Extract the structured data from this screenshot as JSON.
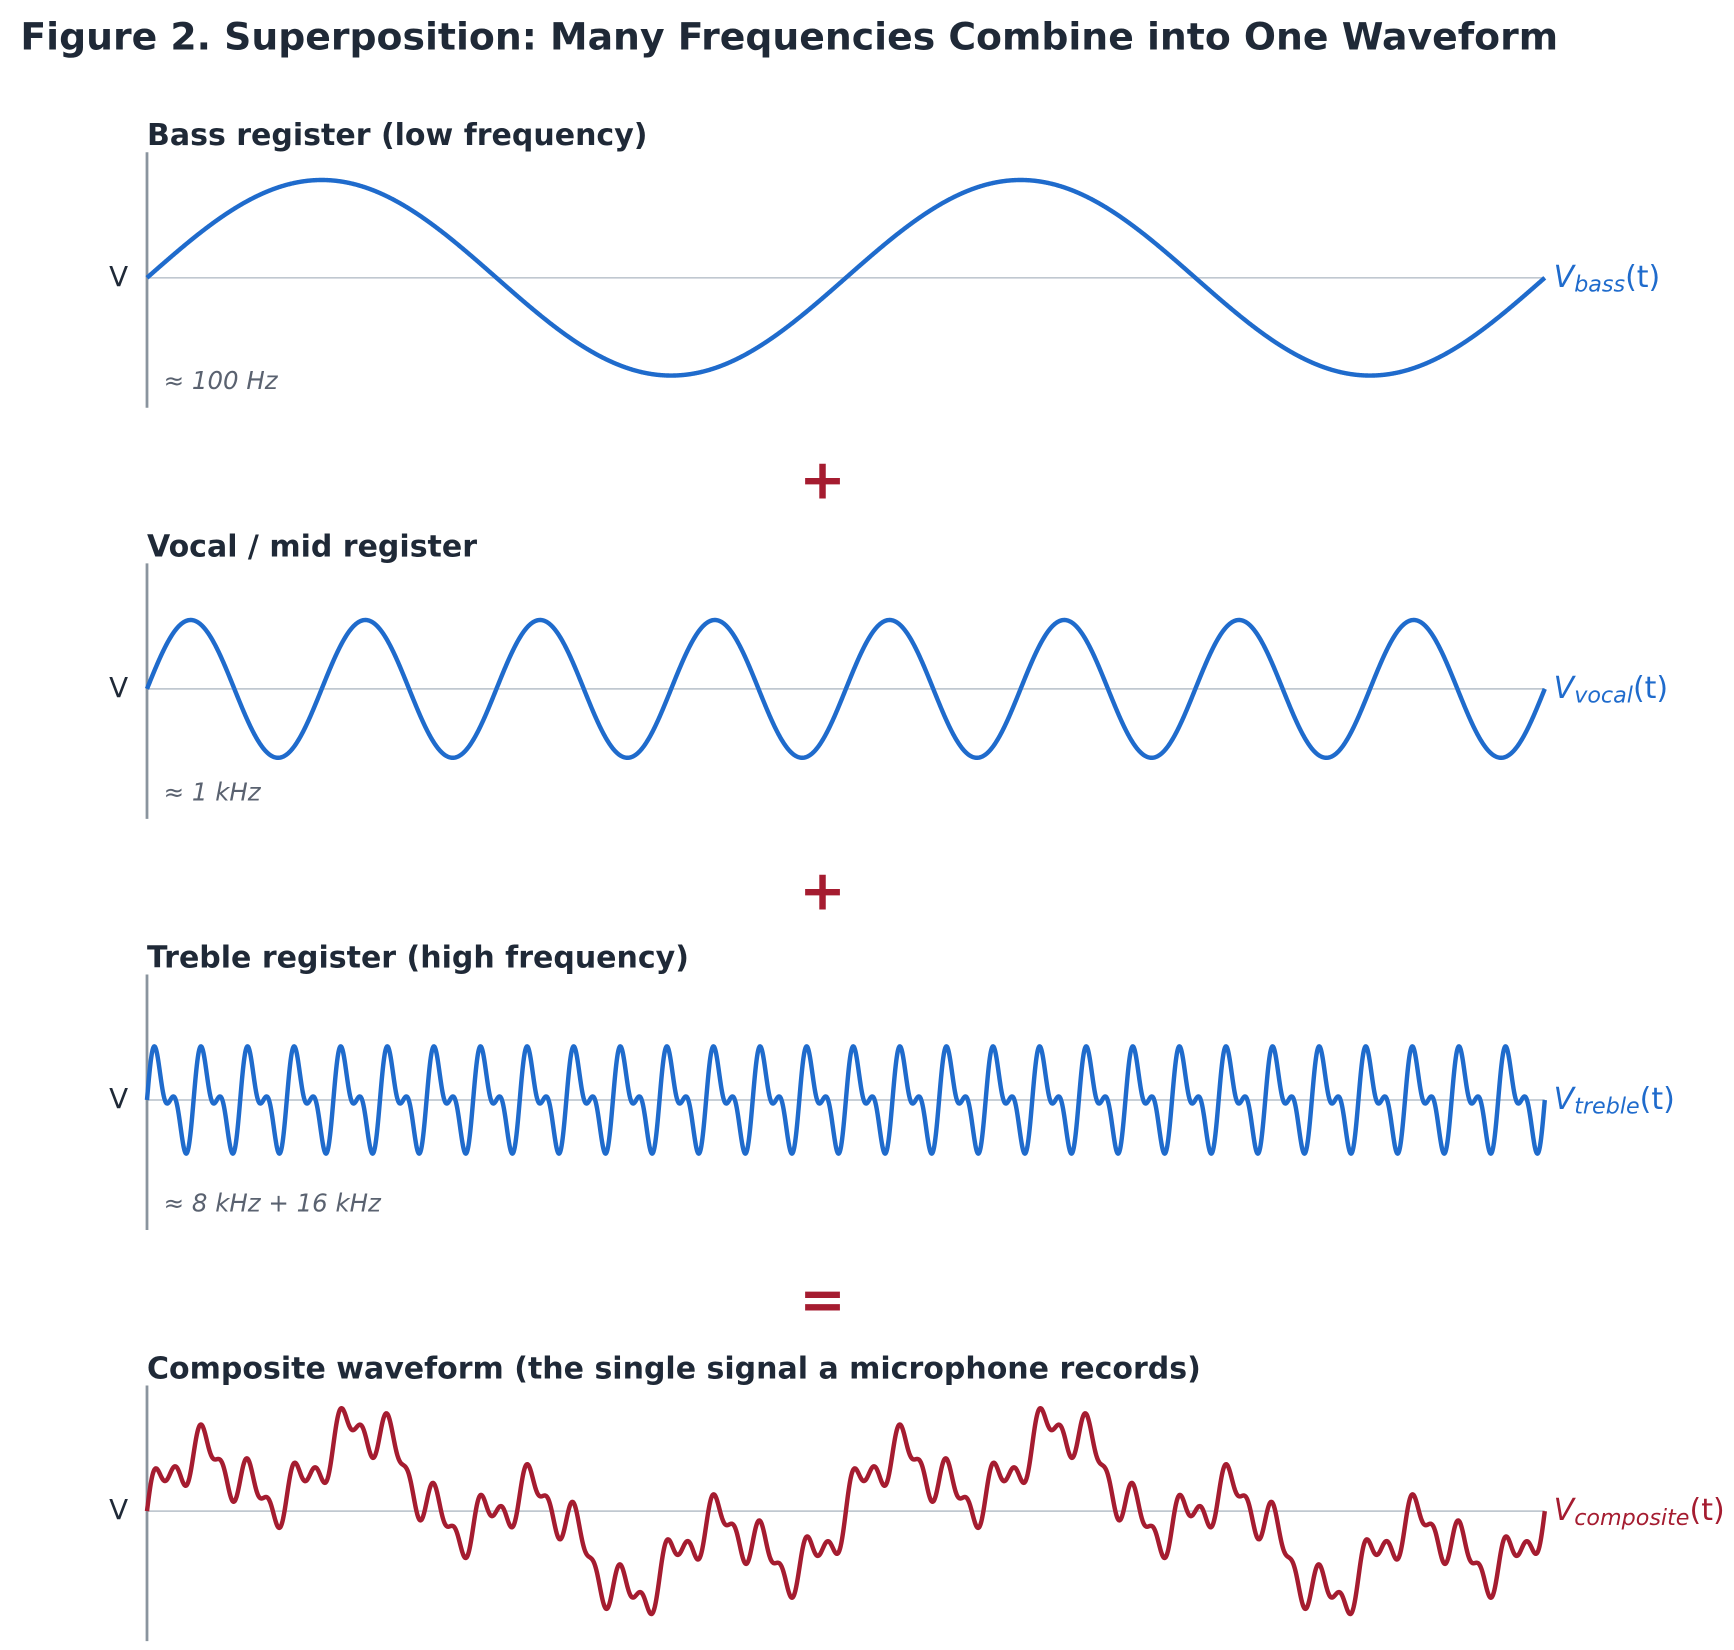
{
  "header": {
    "title": "Figure 2.  Superposition: Many Frequencies Combine into One Waveform"
  },
  "panels": [
    {
      "title": "Bass register (low frequency)",
      "axis_label": "V",
      "note": "≈ 100 Hz",
      "curve_label": {
        "symbol": "V",
        "subscript": "bass",
        "argument": "(t)"
      }
    },
    {
      "title": "Vocal / mid register",
      "axis_label": "V",
      "note": "≈ 1 kHz",
      "curve_label": {
        "symbol": "V",
        "subscript": "vocal",
        "argument": "(t)"
      }
    },
    {
      "title": "Treble register (high frequency)",
      "axis_label": "V",
      "note": "≈ 8 kHz + 16 kHz",
      "curve_label": {
        "symbol": "V",
        "subscript": "treble",
        "argument": "(t)"
      }
    },
    {
      "title": "Composite waveform  (the single signal a microphone records)",
      "axis_label": "V",
      "curve_label": {
        "symbol": "V",
        "subscript": "composite",
        "argument": "(t)"
      }
    }
  ],
  "operators": [
    "+",
    "+",
    "="
  ]
}
